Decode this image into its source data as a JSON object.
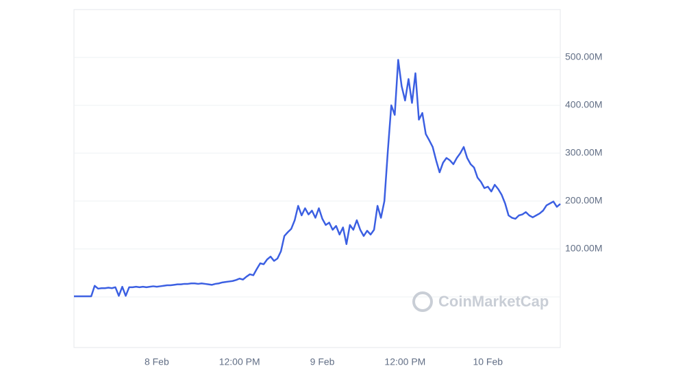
{
  "chart_data": {
    "type": "line",
    "watermark": "CoinMarketCap",
    "categories": [
      null,
      null,
      null,
      null,
      null,
      null,
      null,
      null,
      null,
      null,
      null,
      null,
      null,
      null,
      null,
      null,
      null,
      null,
      null,
      null,
      null,
      null,
      null,
      null,
      "8 Feb",
      null,
      null,
      null,
      null,
      null,
      null,
      null,
      null,
      null,
      null,
      null,
      null,
      null,
      null,
      null,
      null,
      null,
      null,
      null,
      null,
      null,
      null,
      null,
      "12:00 PM",
      null,
      null,
      null,
      null,
      null,
      null,
      null,
      null,
      null,
      null,
      null,
      null,
      null,
      null,
      null,
      null,
      null,
      null,
      null,
      null,
      null,
      null,
      null,
      "9 Feb",
      null,
      null,
      null,
      null,
      null,
      null,
      null,
      null,
      null,
      null,
      null,
      null,
      null,
      null,
      null,
      null,
      null,
      null,
      null,
      null,
      null,
      null,
      null,
      "12:00 PM",
      null,
      null,
      null,
      null,
      null,
      null,
      null,
      null,
      null,
      null,
      null,
      null,
      null,
      null,
      null,
      null,
      null,
      null,
      null,
      null,
      null,
      null,
      null,
      "10 Feb",
      null,
      null,
      null,
      null,
      null,
      null,
      null,
      null,
      null,
      null,
      null,
      null,
      null,
      null,
      null,
      null,
      null,
      null,
      null,
      null,
      null
    ],
    "series": [
      {
        "color": "#3b5fe2",
        "values": [
          1,
          1,
          1,
          1,
          1,
          1,
          23,
          17,
          18,
          18,
          19,
          18,
          20,
          2,
          21,
          2,
          20,
          20,
          21,
          20,
          21,
          20,
          21,
          22,
          21,
          22,
          23,
          24,
          24,
          25,
          26,
          26,
          27,
          27,
          28,
          28,
          27,
          28,
          27,
          26,
          25,
          27,
          28,
          30,
          31,
          32,
          33,
          35,
          38,
          36,
          42,
          47,
          45,
          58,
          70,
          68,
          78,
          84,
          75,
          80,
          95,
          127,
          135,
          142,
          160,
          190,
          170,
          185,
          172,
          180,
          165,
          185,
          163,
          150,
          155,
          140,
          148,
          130,
          145,
          110,
          150,
          140,
          160,
          140,
          127,
          138,
          130,
          140,
          190,
          165,
          200,
          305,
          400,
          380,
          495,
          440,
          410,
          455,
          405,
          467,
          370,
          384,
          340,
          327,
          313,
          285,
          260,
          280,
          290,
          285,
          277,
          290,
          300,
          313,
          290,
          277,
          270,
          249,
          240,
          227,
          230,
          220,
          234,
          225,
          213,
          195,
          170,
          165,
          163,
          170,
          172,
          177,
          170,
          166,
          170,
          174,
          180,
          191,
          195,
          199,
          188,
          194
        ]
      }
    ],
    "ylim": [
      -106,
      600
    ],
    "yticks": [
      {
        "value": 100,
        "label": "100.00M"
      },
      {
        "value": 200,
        "label": "200.00M"
      },
      {
        "value": 300,
        "label": "300.00M"
      },
      {
        "value": 400,
        "label": "400.00M"
      },
      {
        "value": 500,
        "label": "500.00M"
      }
    ],
    "grid": true
  }
}
